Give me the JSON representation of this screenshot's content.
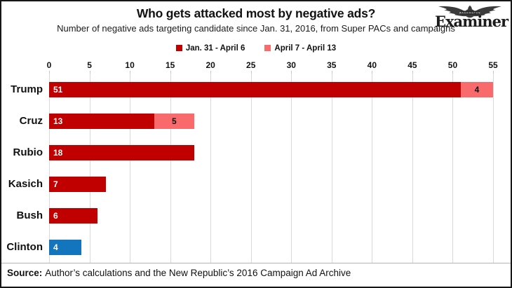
{
  "page": {
    "title": "Who gets attacked most by negative ads?",
    "subtitle": "Number of negative ads targeting candidate since Jan. 31, 2016, from Super PACs and campaigns"
  },
  "logo": {
    "masthead": "Examiner",
    "city": "WASHINGTON"
  },
  "legend": {
    "items": [
      {
        "label": "Jan. 31 - April 6",
        "color": "#C00000"
      },
      {
        "label": "April 7 - April 13",
        "color": "#F96A6D"
      }
    ]
  },
  "chart_data": {
    "type": "bar",
    "orientation": "horizontal",
    "title": "Who gets attacked most by negative ads?",
    "categories": [
      "Trump",
      "Cruz",
      "Rubio",
      "Kasich",
      "Bush",
      "Clinton"
    ],
    "series": [
      {
        "name": "Jan. 31 - April 6",
        "values": [
          51,
          13,
          18,
          7,
          6,
          4
        ]
      },
      {
        "name": "April 7 - April 13",
        "values": [
          4,
          5,
          0,
          0,
          0,
          0
        ]
      }
    ],
    "series1_bar_colors": [
      "#C00000",
      "#C00000",
      "#C00000",
      "#C00000",
      "#C00000",
      "#1375BE"
    ],
    "series2_color": "#F96A6D",
    "xlim": [
      0,
      55
    ],
    "x_ticks": [
      0,
      5,
      10,
      15,
      20,
      25,
      30,
      35,
      40,
      45,
      50,
      55
    ],
    "grid": "vertical-only",
    "gridline_color": "#d9d9d9",
    "legend_position": "top-center",
    "value_labels": "series1 white inside-left, series2 black centered"
  },
  "footer": {
    "source_label": "Source:",
    "source_text": "Author’s calculations and the New Republic’s 2016 Campaign Ad Archive"
  }
}
